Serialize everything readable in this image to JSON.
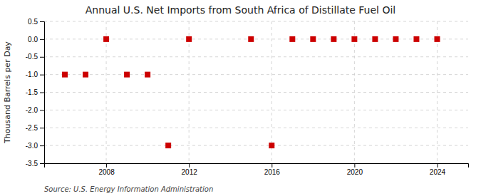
{
  "chart_data": {
    "type": "scatter",
    "title": "Annual U.S. Net Imports from South Africa of Distillate Fuel Oil",
    "y_label": "Thousand Barrels per Day",
    "source": "Source: U.S. Energy Information Administration",
    "x": [
      2006,
      2007,
      2008,
      2009,
      2010,
      2011,
      2012,
      2015,
      2016,
      2017,
      2018,
      2019,
      2020,
      2021,
      2022,
      2023,
      2024
    ],
    "values": [
      -1,
      -1,
      0,
      -1,
      -1,
      -3,
      0,
      0,
      -3,
      0,
      0,
      0,
      0,
      0,
      0,
      0,
      0
    ],
    "color": "#cc0000",
    "marker": "square",
    "grid": true,
    "xlim": [
      2005.0,
      2025.5
    ],
    "ylim": [
      -3.5,
      0.5
    ],
    "xticks": [
      2008,
      2012,
      2016,
      2020,
      2024
    ],
    "yticks": [
      0.5,
      {
        "value": 0.0,
        "label": "0.0"
      },
      -0.5,
      {
        "value": -1.0,
        "label": "-1.0"
      },
      -1.5,
      {
        "value": -2.0,
        "label": "-2.0"
      },
      -2.5,
      {
        "value": -3.0,
        "label": "-3.0"
      },
      -3.5
    ]
  }
}
